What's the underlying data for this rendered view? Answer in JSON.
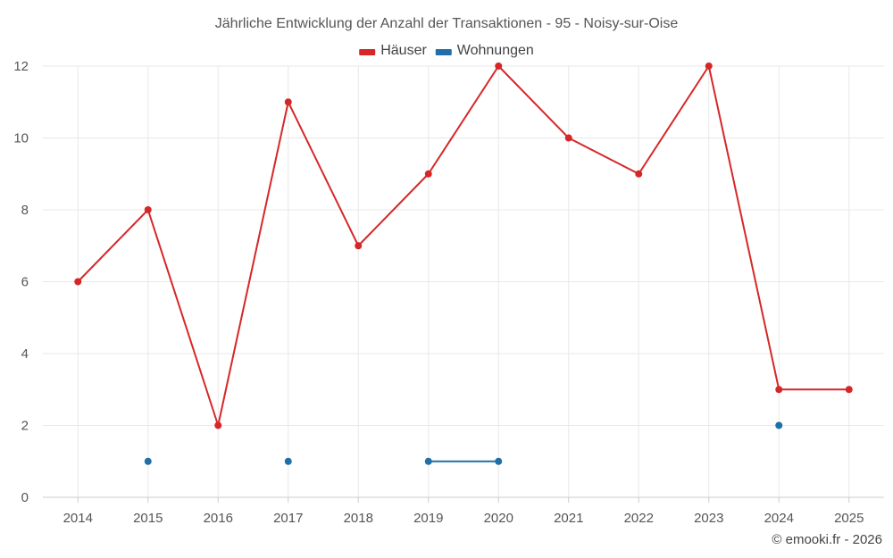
{
  "chart_data": {
    "type": "line",
    "title": "Jährliche Entwicklung der Anzahl der Transaktionen - 95 - Noisy-sur-Oise",
    "xlabel": "",
    "ylabel": "",
    "categories": [
      "2014",
      "2015",
      "2016",
      "2017",
      "2018",
      "2019",
      "2020",
      "2021",
      "2022",
      "2023",
      "2024",
      "2025"
    ],
    "ylim": [
      0,
      12
    ],
    "yticks": [
      0,
      2,
      4,
      6,
      8,
      10,
      12
    ],
    "grid": true,
    "legend_position": "top-center",
    "series": [
      {
        "name": "Häuser",
        "color": "#d62728",
        "values": [
          6,
          8,
          2,
          11,
          7,
          9,
          12,
          10,
          9,
          12,
          3,
          3
        ]
      },
      {
        "name": "Wohnungen",
        "color": "#1f6fa8",
        "values": [
          null,
          1,
          null,
          1,
          null,
          1,
          1,
          null,
          null,
          null,
          2,
          null
        ]
      }
    ]
  },
  "credit": "© emooki.fr - 2026"
}
